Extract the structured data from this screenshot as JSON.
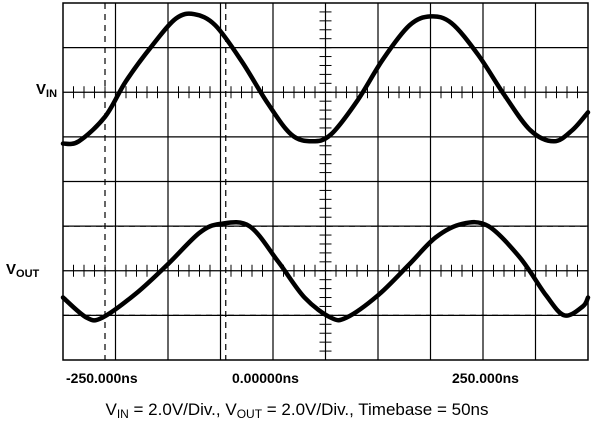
{
  "chart_data": {
    "type": "line",
    "title": "",
    "xlabel": "",
    "ylabel": "",
    "x_tick_labels": [
      "-250.000ns",
      "0.00000ns",
      "250.000ns"
    ],
    "xlim_div": [
      0,
      10
    ],
    "ylim_div": [
      0,
      8
    ],
    "grid": true,
    "series": [
      {
        "name": "VIN",
        "label_main": "V",
        "label_sub": "IN",
        "points_div": [
          [
            0.0,
            -1.15
          ],
          [
            0.3,
            -1.1
          ],
          [
            0.8,
            -0.55
          ],
          [
            1.2,
            0.25
          ],
          [
            1.7,
            1.05
          ],
          [
            2.15,
            1.65
          ],
          [
            2.5,
            1.75
          ],
          [
            2.9,
            1.5
          ],
          [
            3.4,
            0.7
          ],
          [
            3.9,
            -0.25
          ],
          [
            4.35,
            -0.95
          ],
          [
            4.75,
            -1.1
          ],
          [
            5.1,
            -0.95
          ],
          [
            5.6,
            -0.2
          ],
          [
            6.1,
            0.75
          ],
          [
            6.6,
            1.5
          ],
          [
            7.0,
            1.7
          ],
          [
            7.4,
            1.55
          ],
          [
            7.9,
            0.85
          ],
          [
            8.4,
            -0.05
          ],
          [
            8.9,
            -0.85
          ],
          [
            9.35,
            -1.1
          ],
          [
            9.7,
            -0.85
          ],
          [
            10.0,
            -0.45
          ]
        ]
      },
      {
        "name": "VOUT",
        "label_main": "V",
        "label_sub": "OUT",
        "points_div": [
          [
            0.0,
            -0.6
          ],
          [
            0.45,
            -1.05
          ],
          [
            0.75,
            -1.05
          ],
          [
            1.4,
            -0.5
          ],
          [
            2.0,
            0.15
          ],
          [
            2.6,
            0.85
          ],
          [
            3.0,
            1.05
          ],
          [
            3.55,
            1.0
          ],
          [
            4.1,
            0.2
          ],
          [
            4.6,
            -0.6
          ],
          [
            5.1,
            -1.05
          ],
          [
            5.4,
            -1.05
          ],
          [
            6.0,
            -0.55
          ],
          [
            6.6,
            0.15
          ],
          [
            7.1,
            0.75
          ],
          [
            7.6,
            1.05
          ],
          [
            8.1,
            1.0
          ],
          [
            8.7,
            0.3
          ],
          [
            9.2,
            -0.55
          ],
          [
            9.55,
            -1.0
          ],
          [
            9.9,
            -0.8
          ],
          [
            10.0,
            -0.6
          ]
        ]
      }
    ]
  },
  "labels": {
    "v": "V",
    "vin_sub": "IN",
    "vout_sub": "OUT"
  },
  "caption": {
    "v": "V",
    "in_sub": "IN",
    "in_rest": " = 2.0V/Div., ",
    "out_sub": "OUT",
    "out_rest": " = 2.0V/Div., Timebase = 50ns"
  }
}
